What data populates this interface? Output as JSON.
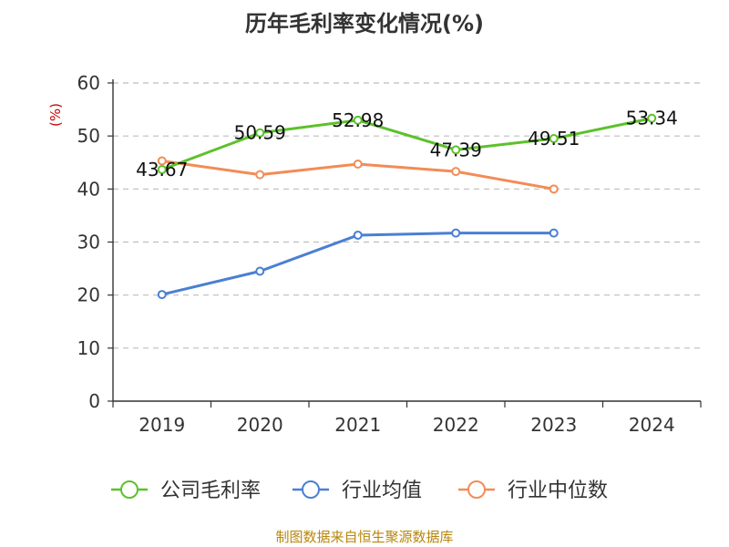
{
  "chart_data": {
    "type": "line",
    "title": "历年毛利率变化情况(%)",
    "unit_label": "(%)",
    "categories": [
      "2019",
      "2020",
      "2021",
      "2022",
      "2023",
      "2024"
    ],
    "ylim": [
      0,
      60
    ],
    "yticks": [
      0,
      10,
      20,
      30,
      40,
      50,
      60
    ],
    "grid": true,
    "legend_position": "bottom",
    "series": [
      {
        "name": "公司毛利率",
        "color": "#5cc12b",
        "values": [
          43.67,
          50.59,
          52.98,
          47.39,
          49.51,
          53.34
        ],
        "labels": [
          "43.67",
          "50.59",
          "52.98",
          "47.39",
          "49.51",
          "53.34"
        ]
      },
      {
        "name": "行业均值",
        "color": "#4a7fd4",
        "values": [
          20.1,
          24.5,
          31.3,
          31.7,
          31.7,
          null
        ]
      },
      {
        "name": "行业中位数",
        "color": "#f28c56",
        "values": [
          45.3,
          42.7,
          44.7,
          43.3,
          40.0,
          null
        ]
      }
    ]
  },
  "source": "制图数据来自恒生聚源数据库"
}
